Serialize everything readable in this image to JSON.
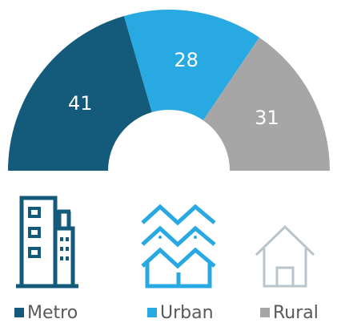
{
  "chart_data": {
    "type": "pie",
    "half": true,
    "donut": true,
    "categories": [
      "Metro",
      "Urban",
      "Rural"
    ],
    "values": [
      41,
      28,
      31
    ],
    "colors": [
      "#145a7a",
      "#29a9e1",
      "#a6a6a6"
    ]
  }
}
